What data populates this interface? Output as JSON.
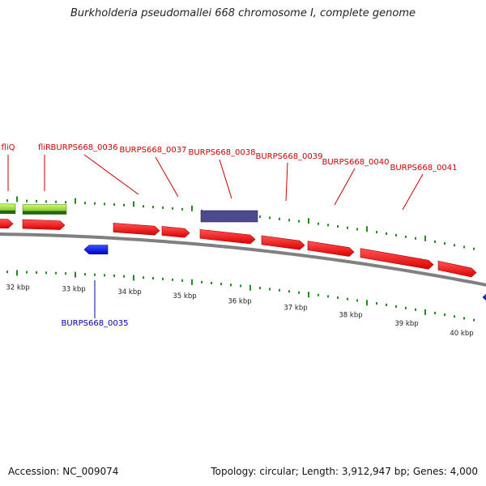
{
  "title": "Burkholderia pseudomallei 668 chromosome I, complete genome",
  "accession_text": "Accession: NC_009074",
  "summary_text": "Topology: circular; Length: 3,912,947 bp; Genes: 4,000",
  "colors": {
    "forward_gene": "#ff0000",
    "reverse_gene": "#0000ff",
    "feature_bar": "#4a4a8c",
    "green_feature": "#99e633",
    "forward_label": "#cc0000",
    "reverse_label": "#0000aa",
    "tick": "#228B22",
    "backbone": "#808080"
  },
  "kbp_labels": [
    "32 kbp",
    "33 kbp",
    "34 kbp",
    "35 kbp",
    "36 kbp",
    "37 kbp",
    "38 kbp",
    "39 kbp",
    "40 kbp"
  ],
  "forward_labels": [
    "fliQ",
    "fliR",
    "BURPS668_0036",
    "BURPS668_0037",
    "BURPS668_0038",
    "BURPS668_0039",
    "BURPS668_0040",
    "BURPS668_0041"
  ],
  "reverse_labels": [
    "BURPS668_0035"
  ]
}
